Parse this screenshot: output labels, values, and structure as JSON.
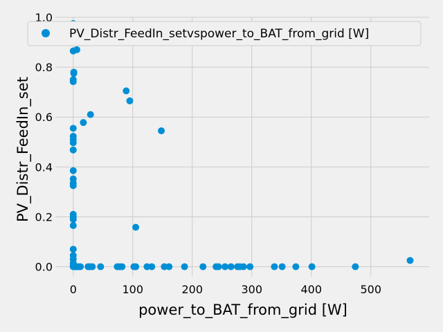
{
  "chart_data": {
    "type": "scatter",
    "xlabel": "power_to_BAT_from_grid [W]",
    "ylabel": "PV_Distr_FeedIn_set",
    "xlim": [
      -30,
      598
    ],
    "ylim": [
      -0.04,
      1.0
    ],
    "xticks": [
      0,
      100,
      200,
      300,
      400,
      500
    ],
    "yticks": [
      0.0,
      0.2,
      0.4,
      0.6,
      0.8,
      1.0
    ],
    "grid": true,
    "legend_position": "top",
    "colors": {
      "marker": "#008fd5",
      "background": "#f0f0f0",
      "grid": "#cbcbcb"
    },
    "series": [
      {
        "name": "PV_Distr_FeedIn_setvspower_to_BAT_from_grid [W]",
        "points": [
          [
            0,
            0.975
          ],
          [
            0,
            0.865
          ],
          [
            6,
            0.87
          ],
          [
            1,
            0.78
          ],
          [
            1,
            0.775
          ],
          [
            0,
            0.75
          ],
          [
            0,
            0.742
          ],
          [
            89,
            0.705
          ],
          [
            95,
            0.665
          ],
          [
            29,
            0.61
          ],
          [
            17,
            0.578
          ],
          [
            148,
            0.545
          ],
          [
            0,
            0.555
          ],
          [
            0,
            0.523
          ],
          [
            0,
            0.51
          ],
          [
            0,
            0.497
          ],
          [
            0,
            0.468
          ],
          [
            0,
            0.385
          ],
          [
            0,
            0.352
          ],
          [
            0,
            0.335
          ],
          [
            0,
            0.325
          ],
          [
            0,
            0.21
          ],
          [
            0,
            0.2
          ],
          [
            0,
            0.19
          ],
          [
            0,
            0.165
          ],
          [
            105,
            0.158
          ],
          [
            0,
            0.07
          ],
          [
            0,
            0.045
          ],
          [
            0,
            0.03
          ],
          [
            0,
            0.015
          ],
          [
            0,
            0.005
          ],
          [
            0,
            0.0
          ],
          [
            2,
            0.0
          ],
          [
            4,
            0.0
          ],
          [
            6,
            0.0
          ],
          [
            9,
            0.0
          ],
          [
            12,
            0.0
          ],
          [
            25,
            0.0
          ],
          [
            28,
            0.0
          ],
          [
            32,
            0.0
          ],
          [
            46,
            0.0
          ],
          [
            74,
            0.0
          ],
          [
            78,
            0.0
          ],
          [
            82,
            0.0
          ],
          [
            102,
            0.0
          ],
          [
            105,
            0.0
          ],
          [
            124,
            0.0
          ],
          [
            132,
            0.0
          ],
          [
            153,
            0.0
          ],
          [
            161,
            0.0
          ],
          [
            187,
            0.0
          ],
          [
            218,
            0.0
          ],
          [
            240,
            0.0
          ],
          [
            244,
            0.0
          ],
          [
            255,
            0.0
          ],
          [
            265,
            0.0
          ],
          [
            276,
            0.0
          ],
          [
            280,
            0.0
          ],
          [
            286,
            0.0
          ],
          [
            297,
            0.0
          ],
          [
            338,
            0.0
          ],
          [
            351,
            0.0
          ],
          [
            374,
            0.0
          ],
          [
            401,
            0.0
          ],
          [
            474,
            0.0
          ],
          [
            566,
            0.025
          ]
        ]
      }
    ]
  }
}
